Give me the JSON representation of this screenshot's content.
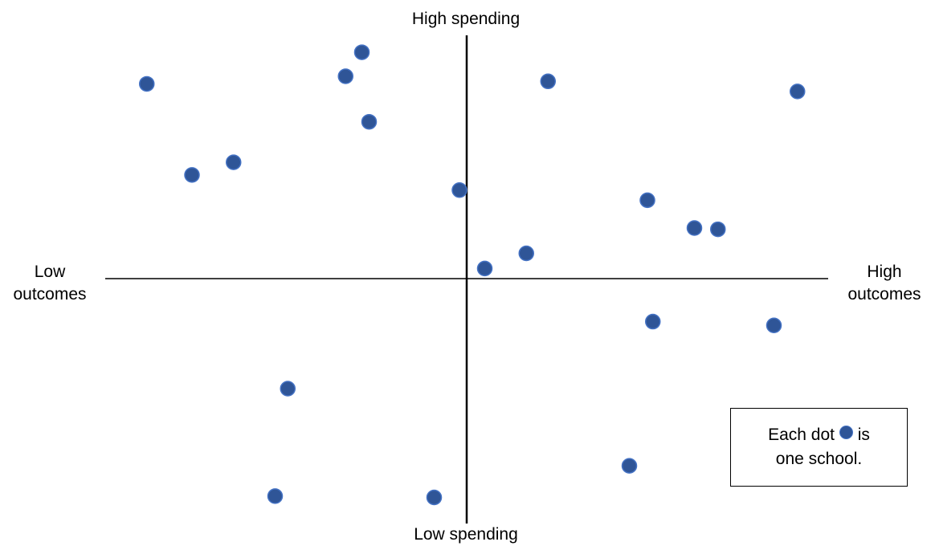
{
  "chart_data": {
    "type": "scatter",
    "xlim": [
      -10,
      10
    ],
    "ylim": [
      -10,
      10
    ],
    "axis_labels": {
      "top": "High spending",
      "bottom": "Low spending",
      "left": [
        "Low",
        "outcomes"
      ],
      "right": [
        "High",
        "outcomes"
      ]
    },
    "points": [
      {
        "x": -8.85,
        "y": 7.7
      },
      {
        "x": -2.9,
        "y": 8.95
      },
      {
        "x": -3.35,
        "y": 8.0
      },
      {
        "x": -2.7,
        "y": 6.2
      },
      {
        "x": -6.45,
        "y": 4.6
      },
      {
        "x": -7.6,
        "y": 4.1
      },
      {
        "x": -0.2,
        "y": 3.5
      },
      {
        "x": 2.25,
        "y": 7.8
      },
      {
        "x": 9.15,
        "y": 7.4
      },
      {
        "x": 5.0,
        "y": 3.1
      },
      {
        "x": 6.3,
        "y": 2.0
      },
      {
        "x": 6.95,
        "y": 1.95
      },
      {
        "x": 1.65,
        "y": 1.0
      },
      {
        "x": 0.5,
        "y": 0.4
      },
      {
        "x": 5.15,
        "y": -1.7
      },
      {
        "x": 8.5,
        "y": -1.85
      },
      {
        "x": -4.95,
        "y": -4.35
      },
      {
        "x": 4.5,
        "y": -7.4
      },
      {
        "x": -5.3,
        "y": -8.6
      },
      {
        "x": -0.9,
        "y": -8.65
      }
    ],
    "grid": false,
    "legend": {
      "position": "bottom-right",
      "text_before": "Each dot",
      "text_after": "is",
      "line2": "one school."
    },
    "colors": {
      "marker_fill": "#2f5597",
      "marker_edge": "#4472c4"
    }
  }
}
